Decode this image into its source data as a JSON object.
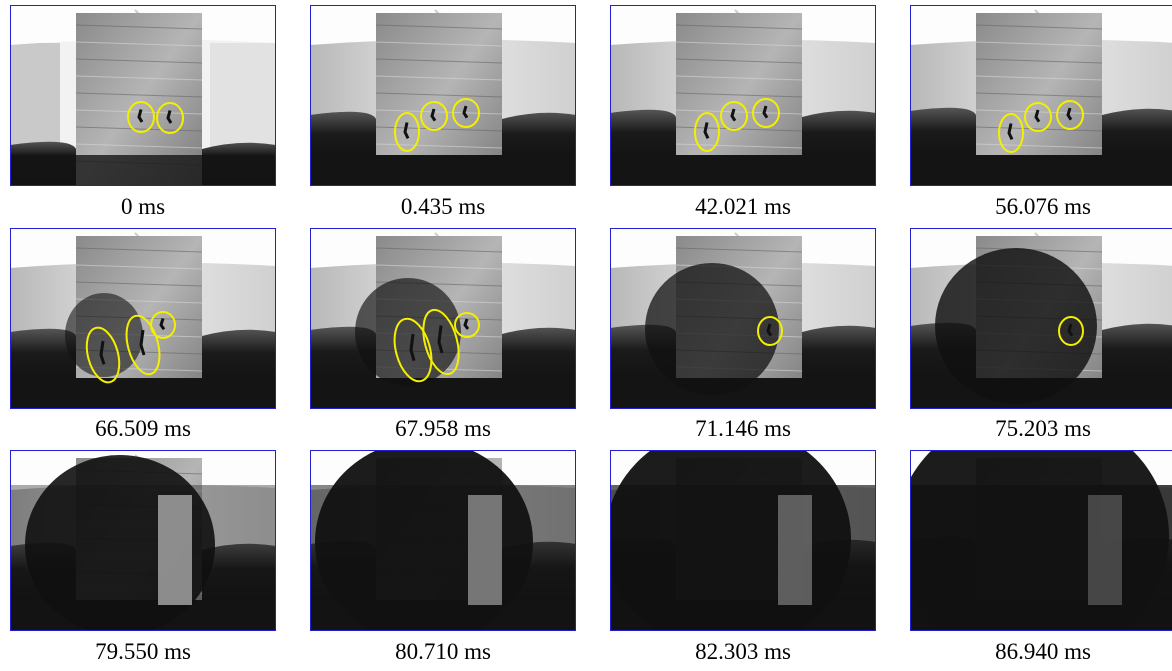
{
  "panels": [
    {
      "caption": "0 ms"
    },
    {
      "caption": "0.435 ms"
    },
    {
      "caption": "42.021 ms"
    },
    {
      "caption": "56.076 ms"
    },
    {
      "caption": "66.509 ms"
    },
    {
      "caption": "67.958 ms"
    },
    {
      "caption": "71.146 ms"
    },
    {
      "caption": "75.203 ms"
    },
    {
      "caption": "79.550 ms"
    },
    {
      "caption": "80.710 ms"
    },
    {
      "caption": "82.303 ms"
    },
    {
      "caption": "86.940 ms"
    }
  ]
}
